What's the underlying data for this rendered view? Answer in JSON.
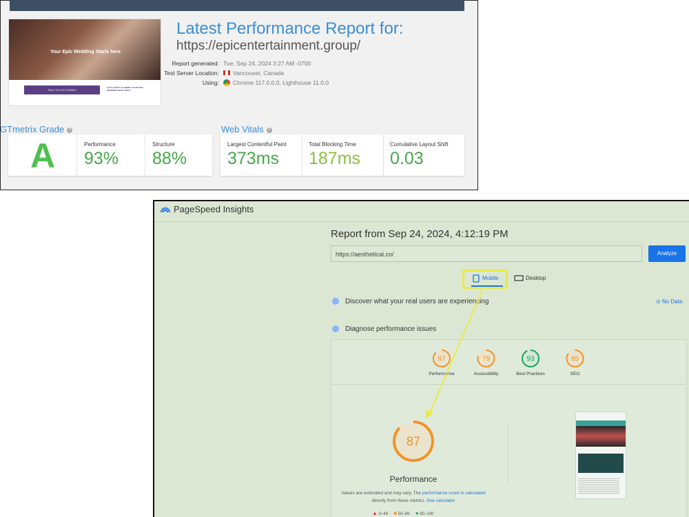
{
  "gtmetrix": {
    "report_title": "Latest Performance Report for:",
    "url": "https://epicentertainment.group/",
    "meta": [
      {
        "label": "Report generated:",
        "value": "Tue, Sep 24, 2024 3:27 AM -0700"
      },
      {
        "label": "Test Server Location:",
        "value": "Vancouver, Canada"
      },
      {
        "label": "Using:",
        "value": "Chrome 117.0.0.0, Lighthouse 11.0.0"
      }
    ],
    "thumbnail": {
      "headline": "Your Epic Wedding Starts here",
      "button": "TALK TO A DJ TODAY!",
      "cta": "LET'S START PLANNING YOUR EPIC WEDDING RIGHT AWAY!"
    },
    "grade_section": "GTmetrix Grade",
    "grade": "A",
    "metrics": [
      {
        "label": "Performance",
        "value": "93%"
      },
      {
        "label": "Structure",
        "value": "88%"
      }
    ],
    "vitals_section": "Web Vitals",
    "vitals": [
      {
        "label": "Largest Contentful Paint",
        "value": "373ms"
      },
      {
        "label": "Total Blocking Time",
        "value": "187ms"
      },
      {
        "label": "Cumulative Layout Shift",
        "value": "0.03"
      }
    ]
  },
  "pagespeed": {
    "app_name": "PageSpeed Insights",
    "report_title": "Report from Sep 24, 2024, 4:12:19 PM",
    "url": "https://aesthetical.co/",
    "analyze": "Analyze",
    "tabs": [
      "Mobile",
      "Desktop"
    ],
    "field_data": "Discover what your real users are experiencing",
    "no_data": "No Data",
    "diagnose": "Diagnose performance issues",
    "scores": [
      {
        "label": "Performance",
        "score": 87
      },
      {
        "label": "Accessibility",
        "score": 79
      },
      {
        "label": "Best Practices",
        "score": 93
      },
      {
        "label": "SEO",
        "score": 85
      }
    ],
    "main_score": 87,
    "main_label": "Performance",
    "note": "Values are estimated and may vary. The",
    "note_link": "performance score is calculated",
    "note_end": "directly from these metrics.",
    "calc_link": "See calculator",
    "legend": [
      "0–49",
      "50–89",
      "90–100"
    ]
  }
}
